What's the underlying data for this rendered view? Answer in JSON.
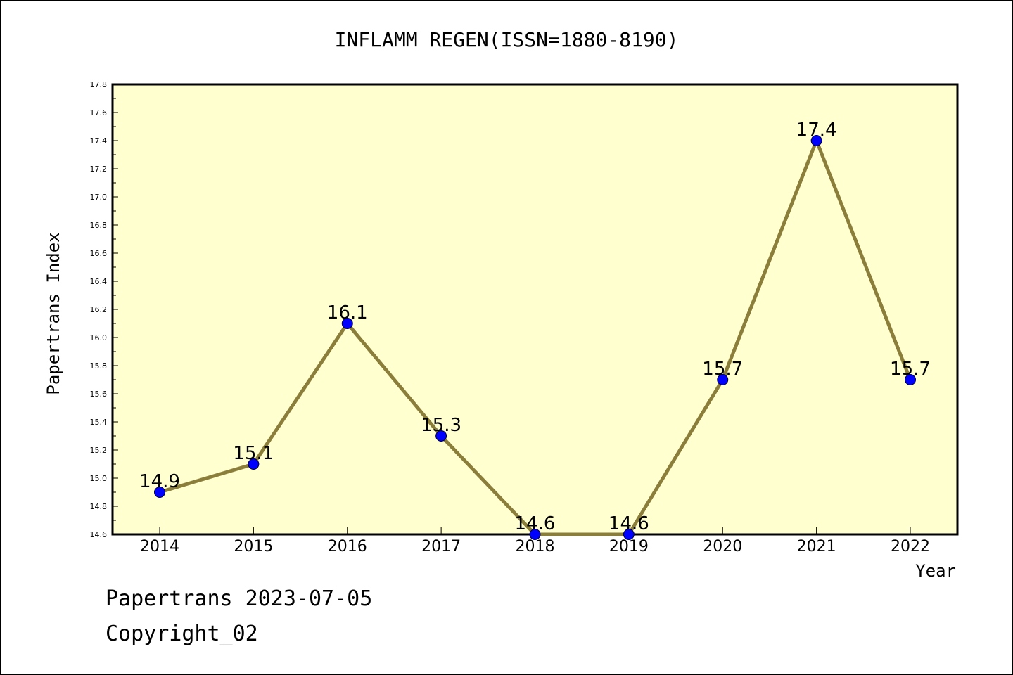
{
  "chart_data": {
    "type": "line",
    "title": "INFLAMM REGEN(ISSN=1880-8190)",
    "xlabel": "Year",
    "ylabel": "Papertrans Index",
    "categories": [
      "2014",
      "2015",
      "2016",
      "2017",
      "2018",
      "2019",
      "2020",
      "2021",
      "2022"
    ],
    "series": [
      {
        "values": [
          14.9,
          15.1,
          16.1,
          15.3,
          14.6,
          14.6,
          15.7,
          17.4,
          15.7
        ]
      }
    ],
    "data_labels": [
      "14.9",
      "15.1",
      "16.1",
      "15.3",
      "14.6",
      "14.6",
      "15.7",
      "17.4",
      "15.7"
    ],
    "ylim": [
      14.6,
      17.8
    ],
    "y_ticks": [
      "14.6",
      "14.8",
      "15.0",
      "15.2",
      "15.4",
      "15.6",
      "15.8",
      "16.0",
      "16.2",
      "16.4",
      "16.6",
      "16.8",
      "17.0",
      "17.2",
      "17.4",
      "17.6",
      "17.8"
    ],
    "grid": false,
    "legend": "none",
    "colors": {
      "plot_background": "#ffffd0",
      "line": "#8b7d3a",
      "marker": "#0000ff"
    }
  },
  "footer": {
    "line1": "Papertrans 2023-07-05",
    "line2": "Copyright_02"
  }
}
